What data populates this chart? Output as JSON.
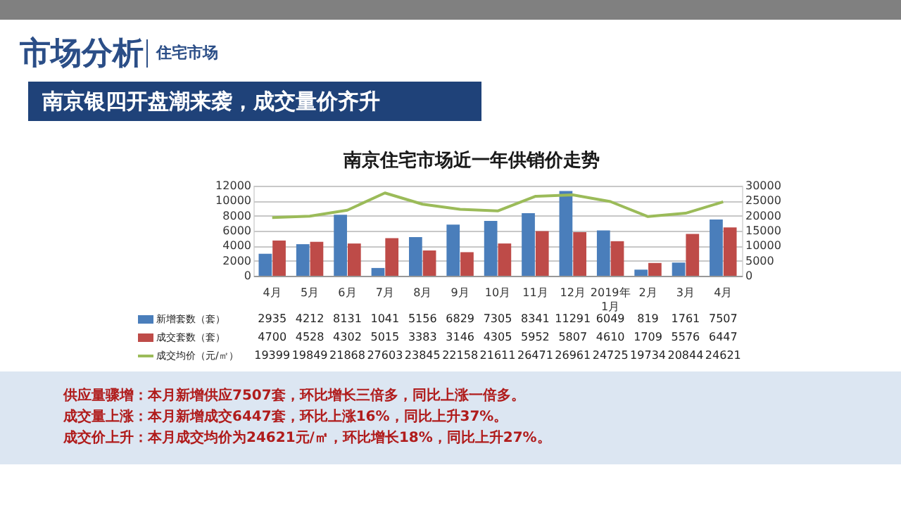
{
  "chart_data": {
    "type": "bar",
    "title": "南京住宅市场近一年供销价走势",
    "subtitle": "南京银四开盘潮来袭，成交量价齐升",
    "categories": [
      "4月",
      "5月",
      "6月",
      "7月",
      "8月",
      "9月",
      "10月",
      "11月",
      "12月",
      "2019年1月",
      "2月",
      "3月",
      "4月"
    ],
    "series": [
      {
        "name": "新增套数（套）",
        "type": "bar",
        "color": "#4a7ebb",
        "values": [
          2935,
          4212,
          8131,
          1041,
          5156,
          6829,
          7305,
          8341,
          11291,
          6049,
          819,
          1761,
          7507
        ]
      },
      {
        "name": "成交套数（套）",
        "type": "bar",
        "color": "#be4b48",
        "values": [
          4700,
          4528,
          4302,
          5015,
          3383,
          3146,
          4305,
          5952,
          5807,
          4610,
          1709,
          5576,
          6447
        ]
      },
      {
        "name": "成交均价（元/㎡）",
        "type": "line",
        "axis": "y2",
        "color": "#9bbb59",
        "values": [
          19399,
          19849,
          21868,
          27603,
          23845,
          22158,
          21611,
          26471,
          26961,
          24725,
          19734,
          20844,
          24621
        ]
      }
    ],
    "ylim": [
      0,
      12000
    ],
    "yticks": [
      0,
      2000,
      4000,
      6000,
      8000,
      10000,
      12000
    ],
    "y2lim": [
      0,
      30000
    ],
    "y2ticks": [
      0,
      5000,
      10000,
      15000,
      20000,
      25000,
      30000
    ],
    "grid": "y",
    "legend": "bottom",
    "data_labels": true,
    "annotations": [
      "市场分析",
      "住宅市场",
      "供应量骤增：本月新增供应7507套，环比增长三倍多，同比上涨一倍多。",
      "成交量上涨：本月新增成交6447套，环比上涨16%，同比上升37%。",
      "成交价上升：本月成交均价为24621元/㎡，环比增长18%，同比上升27%。"
    ]
  }
}
